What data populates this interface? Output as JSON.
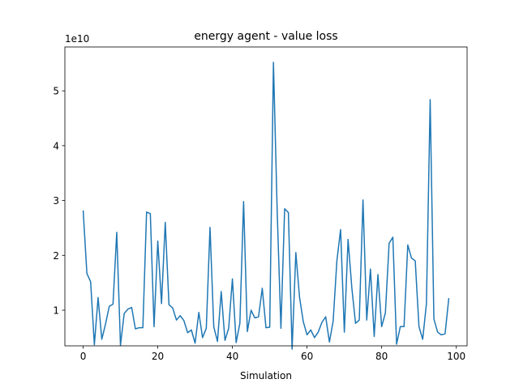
{
  "chart_data": {
    "type": "line",
    "title": "energy agent - value loss",
    "xlabel": "Simulation",
    "ylabel": "",
    "offset_label": "1e10",
    "xlim": [
      -4.9,
      102.9
    ],
    "ylim": [
      0.35,
      5.8
    ],
    "x_ticks": [
      0,
      20,
      40,
      60,
      80,
      100
    ],
    "y_ticks": [
      1,
      2,
      3,
      4,
      5
    ],
    "x_tick_labels": [
      "0",
      "20",
      "40",
      "60",
      "80",
      "100"
    ],
    "y_tick_labels": [
      "1",
      "2",
      "3",
      "4",
      "5"
    ],
    "grid": false,
    "legend": "none",
    "series": [
      {
        "color": "#1f77b4",
        "x": [
          0,
          1,
          2,
          3,
          4,
          5,
          6,
          7,
          8,
          9,
          10,
          11,
          12,
          13,
          14,
          15,
          16,
          17,
          18,
          19,
          20,
          21,
          22,
          23,
          24,
          25,
          26,
          27,
          28,
          29,
          30,
          31,
          32,
          33,
          34,
          35,
          36,
          37,
          38,
          39,
          40,
          41,
          42,
          43,
          44,
          45,
          46,
          47,
          48,
          49,
          50,
          51,
          52,
          53,
          54,
          55,
          56,
          57,
          58,
          59,
          60,
          61,
          62,
          63,
          64,
          65,
          66,
          67,
          68,
          69,
          70,
          71,
          72,
          73,
          74,
          75,
          76,
          77,
          78,
          79,
          80,
          81,
          82,
          83,
          84,
          85,
          86,
          87,
          88,
          89,
          90,
          91,
          92,
          93,
          94,
          95,
          96,
          97,
          98
        ],
        "values": [
          2.82,
          1.67,
          1.52,
          0.37,
          1.23,
          0.47,
          0.75,
          1.07,
          1.11,
          2.42,
          0.36,
          0.94,
          1.02,
          1.05,
          0.66,
          0.68,
          0.68,
          2.79,
          2.76,
          0.7,
          2.26,
          1.12,
          2.6,
          1.1,
          1.04,
          0.82,
          0.9,
          0.81,
          0.59,
          0.64,
          0.4,
          0.96,
          0.5,
          0.67,
          2.51,
          0.7,
          0.43,
          1.34,
          0.45,
          0.67,
          1.57,
          0.41,
          0.76,
          2.98,
          0.61,
          1.0,
          0.86,
          0.88,
          1.4,
          0.68,
          0.69,
          5.52,
          2.81,
          0.67,
          2.85,
          2.78,
          0.29,
          2.05,
          1.23,
          0.79,
          0.55,
          0.64,
          0.5,
          0.6,
          0.78,
          0.88,
          0.42,
          0.8,
          1.9,
          2.47,
          0.6,
          2.29,
          1.41,
          0.76,
          0.82,
          3.01,
          0.82,
          1.75,
          0.52,
          1.65,
          0.7,
          0.95,
          2.22,
          2.33,
          0.38,
          0.7,
          0.7,
          2.19,
          1.95,
          1.9,
          0.7,
          0.47,
          1.12,
          4.84,
          0.84,
          0.6,
          0.55,
          0.57,
          1.22
        ]
      }
    ]
  }
}
